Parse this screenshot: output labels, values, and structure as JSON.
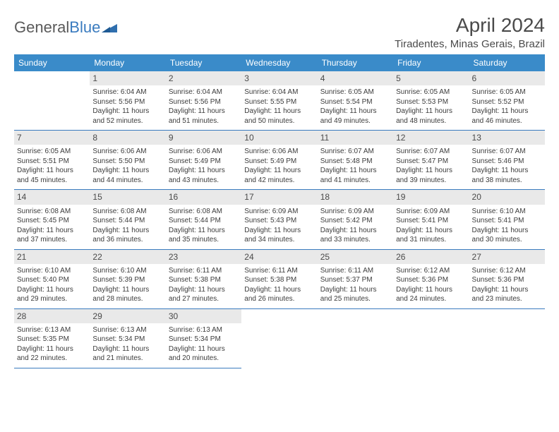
{
  "brand": {
    "name_part1": "General",
    "name_part2": "Blue",
    "shape_color": "#2f6fae"
  },
  "header": {
    "title": "April 2024",
    "location": "Tiradentes, Minas Gerais, Brazil"
  },
  "colors": {
    "header_bg": "#3a8bc9",
    "header_text": "#ffffff",
    "daynum_bg": "#e9e9e9",
    "border": "#3a7bbf",
    "body_text": "#3c3c3c"
  },
  "day_names": [
    "Sunday",
    "Monday",
    "Tuesday",
    "Wednesday",
    "Thursday",
    "Friday",
    "Saturday"
  ],
  "weeks": [
    [
      {
        "num": "",
        "lines": []
      },
      {
        "num": "1",
        "lines": [
          "Sunrise: 6:04 AM",
          "Sunset: 5:56 PM",
          "Daylight: 11 hours",
          "and 52 minutes."
        ]
      },
      {
        "num": "2",
        "lines": [
          "Sunrise: 6:04 AM",
          "Sunset: 5:56 PM",
          "Daylight: 11 hours",
          "and 51 minutes."
        ]
      },
      {
        "num": "3",
        "lines": [
          "Sunrise: 6:04 AM",
          "Sunset: 5:55 PM",
          "Daylight: 11 hours",
          "and 50 minutes."
        ]
      },
      {
        "num": "4",
        "lines": [
          "Sunrise: 6:05 AM",
          "Sunset: 5:54 PM",
          "Daylight: 11 hours",
          "and 49 minutes."
        ]
      },
      {
        "num": "5",
        "lines": [
          "Sunrise: 6:05 AM",
          "Sunset: 5:53 PM",
          "Daylight: 11 hours",
          "and 48 minutes."
        ]
      },
      {
        "num": "6",
        "lines": [
          "Sunrise: 6:05 AM",
          "Sunset: 5:52 PM",
          "Daylight: 11 hours",
          "and 46 minutes."
        ]
      }
    ],
    [
      {
        "num": "7",
        "lines": [
          "Sunrise: 6:05 AM",
          "Sunset: 5:51 PM",
          "Daylight: 11 hours",
          "and 45 minutes."
        ]
      },
      {
        "num": "8",
        "lines": [
          "Sunrise: 6:06 AM",
          "Sunset: 5:50 PM",
          "Daylight: 11 hours",
          "and 44 minutes."
        ]
      },
      {
        "num": "9",
        "lines": [
          "Sunrise: 6:06 AM",
          "Sunset: 5:49 PM",
          "Daylight: 11 hours",
          "and 43 minutes."
        ]
      },
      {
        "num": "10",
        "lines": [
          "Sunrise: 6:06 AM",
          "Sunset: 5:49 PM",
          "Daylight: 11 hours",
          "and 42 minutes."
        ]
      },
      {
        "num": "11",
        "lines": [
          "Sunrise: 6:07 AM",
          "Sunset: 5:48 PM",
          "Daylight: 11 hours",
          "and 41 minutes."
        ]
      },
      {
        "num": "12",
        "lines": [
          "Sunrise: 6:07 AM",
          "Sunset: 5:47 PM",
          "Daylight: 11 hours",
          "and 39 minutes."
        ]
      },
      {
        "num": "13",
        "lines": [
          "Sunrise: 6:07 AM",
          "Sunset: 5:46 PM",
          "Daylight: 11 hours",
          "and 38 minutes."
        ]
      }
    ],
    [
      {
        "num": "14",
        "lines": [
          "Sunrise: 6:08 AM",
          "Sunset: 5:45 PM",
          "Daylight: 11 hours",
          "and 37 minutes."
        ]
      },
      {
        "num": "15",
        "lines": [
          "Sunrise: 6:08 AM",
          "Sunset: 5:44 PM",
          "Daylight: 11 hours",
          "and 36 minutes."
        ]
      },
      {
        "num": "16",
        "lines": [
          "Sunrise: 6:08 AM",
          "Sunset: 5:44 PM",
          "Daylight: 11 hours",
          "and 35 minutes."
        ]
      },
      {
        "num": "17",
        "lines": [
          "Sunrise: 6:09 AM",
          "Sunset: 5:43 PM",
          "Daylight: 11 hours",
          "and 34 minutes."
        ]
      },
      {
        "num": "18",
        "lines": [
          "Sunrise: 6:09 AM",
          "Sunset: 5:42 PM",
          "Daylight: 11 hours",
          "and 33 minutes."
        ]
      },
      {
        "num": "19",
        "lines": [
          "Sunrise: 6:09 AM",
          "Sunset: 5:41 PM",
          "Daylight: 11 hours",
          "and 31 minutes."
        ]
      },
      {
        "num": "20",
        "lines": [
          "Sunrise: 6:10 AM",
          "Sunset: 5:41 PM",
          "Daylight: 11 hours",
          "and 30 minutes."
        ]
      }
    ],
    [
      {
        "num": "21",
        "lines": [
          "Sunrise: 6:10 AM",
          "Sunset: 5:40 PM",
          "Daylight: 11 hours",
          "and 29 minutes."
        ]
      },
      {
        "num": "22",
        "lines": [
          "Sunrise: 6:10 AM",
          "Sunset: 5:39 PM",
          "Daylight: 11 hours",
          "and 28 minutes."
        ]
      },
      {
        "num": "23",
        "lines": [
          "Sunrise: 6:11 AM",
          "Sunset: 5:38 PM",
          "Daylight: 11 hours",
          "and 27 minutes."
        ]
      },
      {
        "num": "24",
        "lines": [
          "Sunrise: 6:11 AM",
          "Sunset: 5:38 PM",
          "Daylight: 11 hours",
          "and 26 minutes."
        ]
      },
      {
        "num": "25",
        "lines": [
          "Sunrise: 6:11 AM",
          "Sunset: 5:37 PM",
          "Daylight: 11 hours",
          "and 25 minutes."
        ]
      },
      {
        "num": "26",
        "lines": [
          "Sunrise: 6:12 AM",
          "Sunset: 5:36 PM",
          "Daylight: 11 hours",
          "and 24 minutes."
        ]
      },
      {
        "num": "27",
        "lines": [
          "Sunrise: 6:12 AM",
          "Sunset: 5:36 PM",
          "Daylight: 11 hours",
          "and 23 minutes."
        ]
      }
    ],
    [
      {
        "num": "28",
        "lines": [
          "Sunrise: 6:13 AM",
          "Sunset: 5:35 PM",
          "Daylight: 11 hours",
          "and 22 minutes."
        ]
      },
      {
        "num": "29",
        "lines": [
          "Sunrise: 6:13 AM",
          "Sunset: 5:34 PM",
          "Daylight: 11 hours",
          "and 21 minutes."
        ]
      },
      {
        "num": "30",
        "lines": [
          "Sunrise: 6:13 AM",
          "Sunset: 5:34 PM",
          "Daylight: 11 hours",
          "and 20 minutes."
        ]
      },
      {
        "num": "",
        "lines": []
      },
      {
        "num": "",
        "lines": []
      },
      {
        "num": "",
        "lines": []
      },
      {
        "num": "",
        "lines": []
      }
    ]
  ]
}
